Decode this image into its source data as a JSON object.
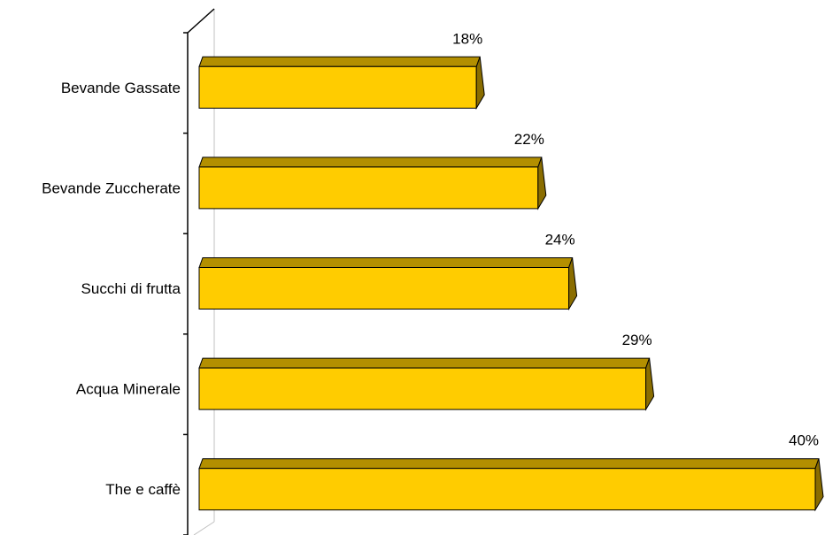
{
  "chart_data": {
    "type": "bar",
    "orientation": "horizontal",
    "categories": [
      "Bevande Gassate",
      "Bevande Zuccherate",
      "Succhi di frutta",
      "Acqua Minerale",
      "The e caffè"
    ],
    "values": [
      18,
      22,
      24,
      29,
      40
    ],
    "value_labels": [
      "18%",
      "22%",
      "24%",
      "29%",
      "40%"
    ],
    "unit": "%",
    "xlim": [
      0,
      40
    ],
    "grid": false,
    "legend": "none",
    "style": "3d",
    "bar_color": "#FFCC00"
  }
}
